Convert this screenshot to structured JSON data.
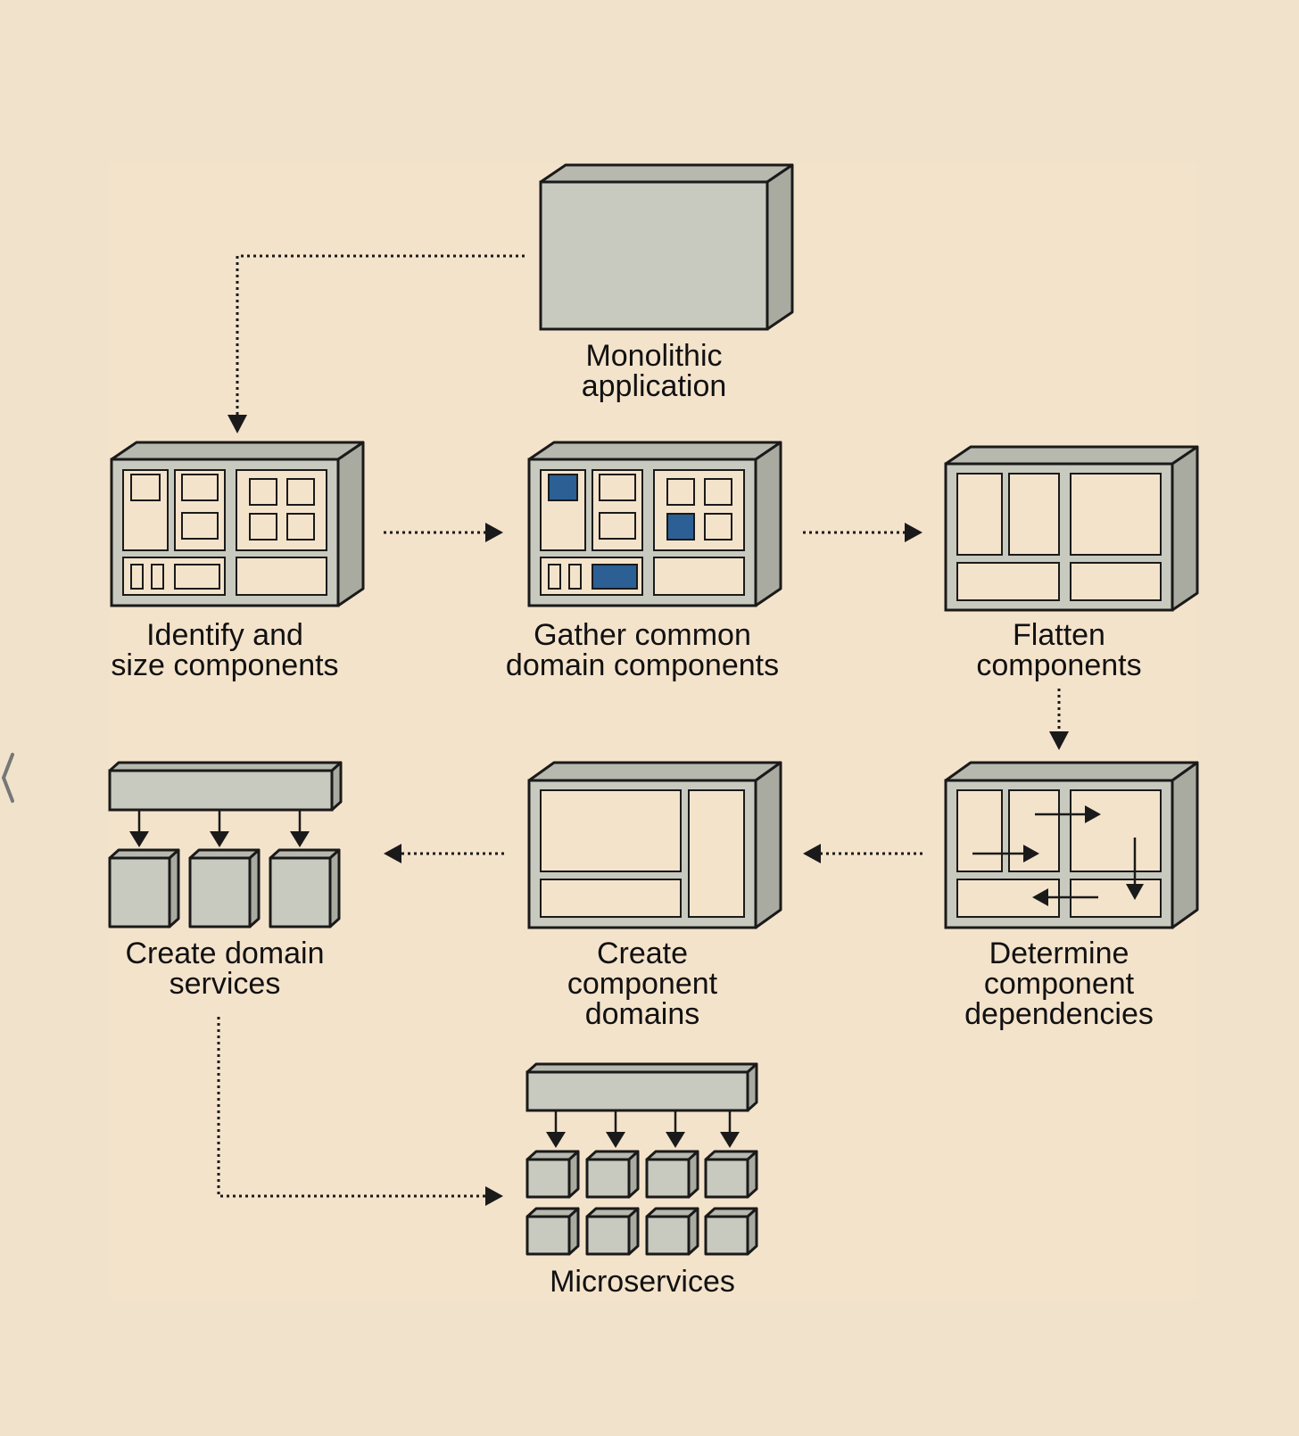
{
  "colors": {
    "page_background": "#f1e2cb",
    "panel_background": "#f4e3cb",
    "box_fill": "#c8c9bf",
    "box_top": "#b7b8ae",
    "box_side": "#a9aaa0",
    "inner_fill": "#f4e3cb",
    "highlight": "#2c5f94",
    "stroke": "#1a1a1a"
  },
  "nav": {
    "prev_icon": "chevron-left-icon",
    "prev_glyph": "⟨"
  },
  "steps": {
    "monolith": {
      "line1": "Monolithic",
      "line2": "application"
    },
    "identify": {
      "line1": "Identify and",
      "line2": "size components"
    },
    "gather": {
      "line1": "Gather common",
      "line2": "domain components"
    },
    "flatten": {
      "line1": "Flatten",
      "line2": "components"
    },
    "dependencies": {
      "line1": "Determine",
      "line2": "component",
      "line3": "dependencies"
    },
    "domains": {
      "line1": "Create",
      "line2": "component",
      "line3": "domains"
    },
    "services": {
      "line1": "Create domain",
      "line2": "services"
    },
    "microservices": {
      "line1": "Microservices"
    }
  }
}
